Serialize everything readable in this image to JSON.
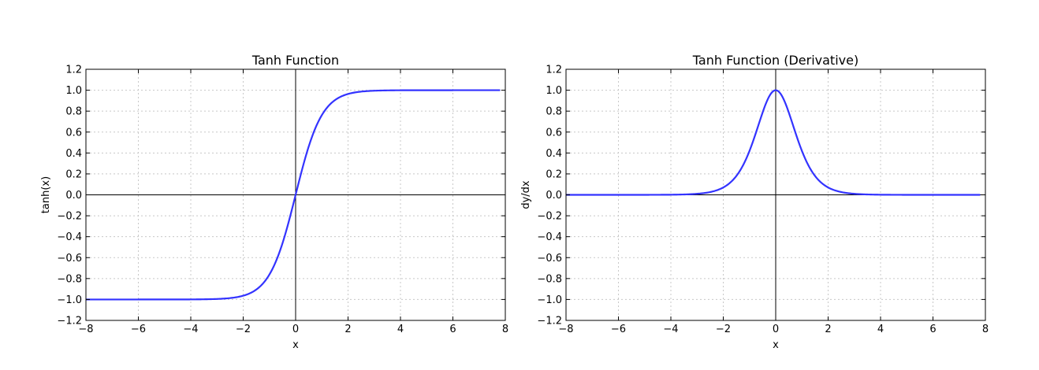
{
  "chart_data": [
    {
      "type": "line",
      "function": "tanh",
      "title": "Tanh Function",
      "xlabel": "x",
      "ylabel": "tanh(x)",
      "xlim": [
        -8,
        8
      ],
      "ylim": [
        -1.2,
        1.2
      ],
      "grid": true,
      "x_ticks": [
        -8,
        -6,
        -4,
        -2,
        0,
        2,
        4,
        6,
        8
      ],
      "y_ticks": [
        -1.2,
        -1.0,
        -0.8,
        -0.6,
        -0.4,
        -0.2,
        0.0,
        0.2,
        0.4,
        0.6,
        0.8,
        1.0,
        1.2
      ],
      "x_tick_labels": [
        "−8",
        "−6",
        "−4",
        "−2",
        "0",
        "2",
        "4",
        "6",
        "8"
      ],
      "y_tick_labels": [
        "−1.2",
        "−1.0",
        "−0.8",
        "−0.6",
        "−0.4",
        "−0.2",
        "0.0",
        "0.2",
        "0.4",
        "0.6",
        "0.8",
        "1.0",
        "1.2"
      ],
      "x_range": [
        -8,
        7.8
      ],
      "x": [
        -8,
        -6,
        -4,
        -3,
        -2,
        -1.5,
        -1,
        -0.5,
        0,
        0.5,
        1,
        1.5,
        2,
        3,
        4,
        6,
        7.8
      ],
      "y": [
        -1.0,
        -1.0,
        -0.999,
        -0.995,
        -0.964,
        -0.905,
        -0.762,
        -0.462,
        0.0,
        0.462,
        0.762,
        0.905,
        0.964,
        0.995,
        0.999,
        1.0,
        1.0
      ],
      "line_color": "#3333ff"
    },
    {
      "type": "line",
      "function": "tanh_derivative",
      "title": "Tanh Function (Derivative)",
      "xlabel": "x",
      "ylabel": "dy/dx",
      "xlim": [
        -8,
        8
      ],
      "ylim": [
        -1.2,
        1.2
      ],
      "grid": true,
      "x_ticks": [
        -8,
        -6,
        -4,
        -2,
        0,
        2,
        4,
        6,
        8
      ],
      "y_ticks": [
        -1.2,
        -1.0,
        -0.8,
        -0.6,
        -0.4,
        -0.2,
        0.0,
        0.2,
        0.4,
        0.6,
        0.8,
        1.0,
        1.2
      ],
      "x_tick_labels": [
        "−8",
        "−6",
        "−4",
        "−2",
        "0",
        "2",
        "4",
        "6",
        "8"
      ],
      "y_tick_labels": [
        "−1.2",
        "−1.0",
        "−0.8",
        "−0.6",
        "−0.4",
        "−0.2",
        "0.0",
        "0.2",
        "0.4",
        "0.6",
        "0.8",
        "1.0",
        "1.2"
      ],
      "x_range": [
        -8,
        7.8
      ],
      "x": [
        -8,
        -6,
        -4,
        -3,
        -2,
        -1.5,
        -1,
        -0.5,
        0,
        0.5,
        1,
        1.5,
        2,
        3,
        4,
        6,
        7.8
      ],
      "y": [
        0.0,
        0.0,
        0.001,
        0.01,
        0.071,
        0.181,
        0.42,
        0.786,
        1.0,
        0.786,
        0.42,
        0.181,
        0.071,
        0.01,
        0.001,
        0.0,
        0.0
      ],
      "line_color": "#3333ff"
    }
  ]
}
